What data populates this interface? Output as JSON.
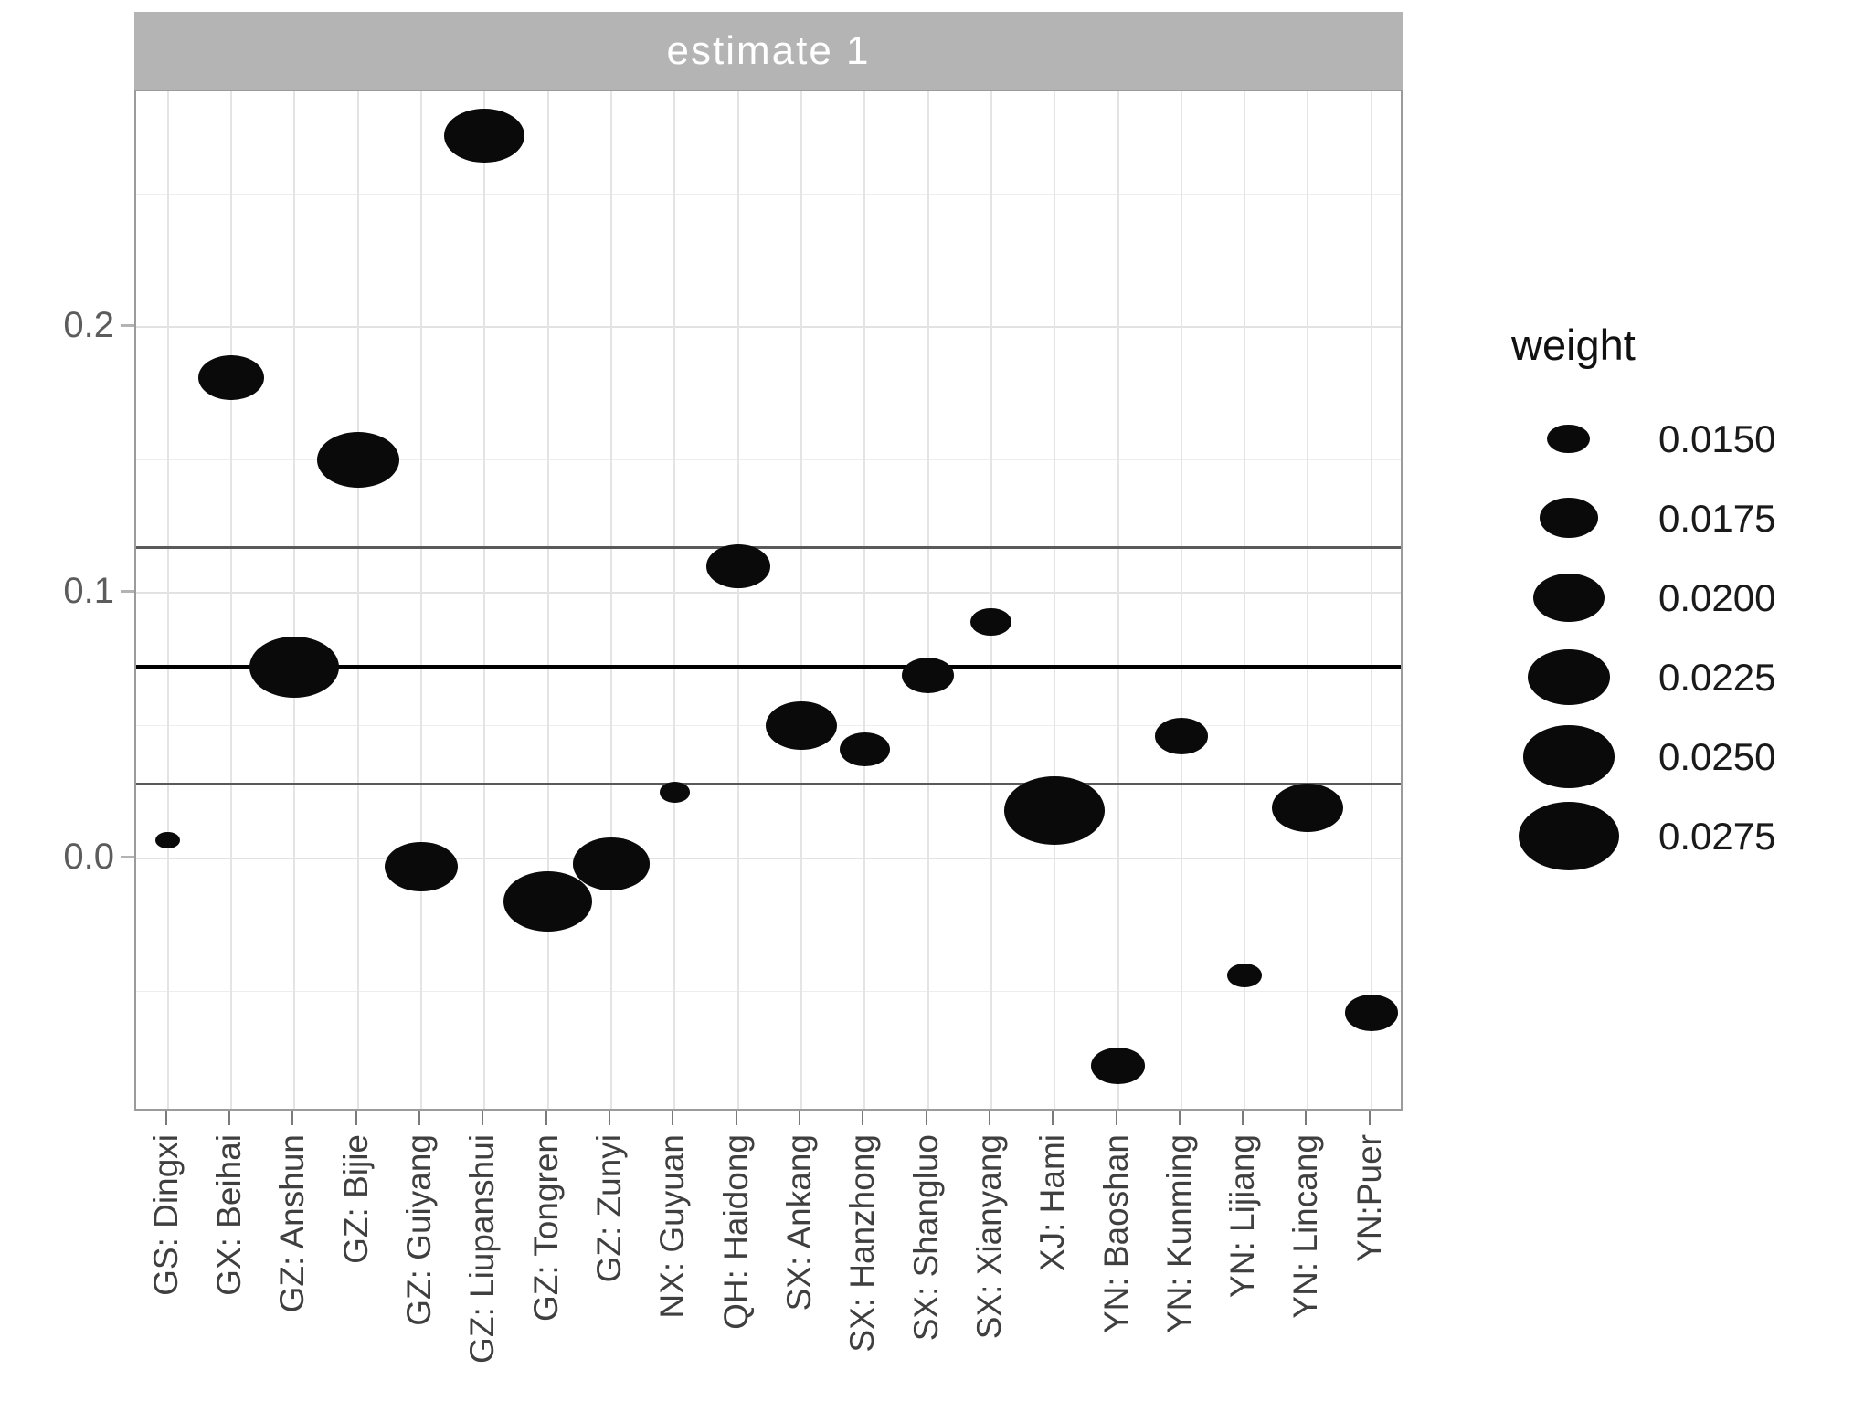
{
  "strip": {
    "title": "estimate 1"
  },
  "legend": {
    "title": "weight",
    "sizes": [
      "0.0150",
      "0.0175",
      "0.0200",
      "0.0225",
      "0.0250",
      "0.0275"
    ]
  },
  "y_axis": {
    "ticks": [
      {
        "label": "0.2",
        "value": 0.2
      },
      {
        "label": "0.1",
        "value": 0.1
      },
      {
        "label": "0.0",
        "value": 0.0
      }
    ]
  },
  "chart_data": {
    "type": "scatter",
    "subtype": "bubble",
    "facet_title": "estimate 1",
    "xlabel": "",
    "ylabel": "",
    "ylim": [
      -0.095,
      0.289
    ],
    "y_major_ticks": [
      0.0,
      0.1,
      0.2
    ],
    "y_minor_gridlines": [
      -0.05,
      0.05,
      0.15,
      0.25
    ],
    "grid": true,
    "legend_title": "weight",
    "legend_position": "right",
    "size_legend_values": [
      0.015,
      0.0175,
      0.02,
      0.0225,
      0.025,
      0.0275
    ],
    "reference_lines": {
      "pooled_estimate": 0.072,
      "ci_lower": 0.028,
      "ci_upper": 0.117
    },
    "categories": [
      "GS: Dingxi",
      "GX: Beihai",
      "GZ: Anshun",
      "GZ: Bijie",
      "GZ: Guiyang",
      "GZ: Liupanshui",
      "GZ: Tongren",
      "GZ: Zunyi",
      "NX: Guyuan",
      "QH: Haidong",
      "SX: Ankang",
      "SX: Hanzhong",
      "SX: Shangluo",
      "SX: Xianyang",
      "XJ: Hami",
      "YN: Baoshan",
      "YN: Kunming",
      "YN: Lijiang",
      "YN: Lincang",
      "YN:Puer"
    ],
    "points": [
      {
        "label": "GS: Dingxi",
        "estimate": 0.007,
        "weight": 0.0131
      },
      {
        "label": "GX: Beihai",
        "estimate": 0.181,
        "weight": 0.0188
      },
      {
        "label": "GZ: Anshun",
        "estimate": 0.072,
        "weight": 0.0244
      },
      {
        "label": "GZ: Bijie",
        "estimate": 0.15,
        "weight": 0.0225
      },
      {
        "label": "GZ: Guiyang",
        "estimate": -0.003,
        "weight": 0.0203
      },
      {
        "label": "GZ: Liupanshui",
        "estimate": 0.272,
        "weight": 0.022
      },
      {
        "label": "GZ: Tongren",
        "estimate": -0.016,
        "weight": 0.0241
      },
      {
        "label": "GZ: Zunyi",
        "estimate": -0.002,
        "weight": 0.0213
      },
      {
        "label": "NX: Guyuan",
        "estimate": 0.025,
        "weight": 0.0136
      },
      {
        "label": "QH: Haidong",
        "estimate": 0.11,
        "weight": 0.0184
      },
      {
        "label": "SX: Ankang",
        "estimate": 0.05,
        "weight": 0.0199
      },
      {
        "label": "SX: Hanzhong",
        "estimate": 0.041,
        "weight": 0.016
      },
      {
        "label": "SX: Shangluo",
        "estimate": 0.069,
        "weight": 0.0163
      },
      {
        "label": "SX: Xianyang",
        "estimate": 0.089,
        "weight": 0.0148
      },
      {
        "label": "XJ: Hami",
        "estimate": 0.018,
        "weight": 0.0275
      },
      {
        "label": "YN: Baoshan",
        "estimate": -0.078,
        "weight": 0.0165
      },
      {
        "label": "YN: Kunming",
        "estimate": 0.046,
        "weight": 0.0165
      },
      {
        "label": "YN: Lijiang",
        "estimate": -0.044,
        "weight": 0.014
      },
      {
        "label": "YN: Lincang",
        "estimate": 0.019,
        "weight": 0.0199
      },
      {
        "label": "YN:Puer",
        "estimate": -0.058,
        "weight": 0.0165
      }
    ]
  }
}
